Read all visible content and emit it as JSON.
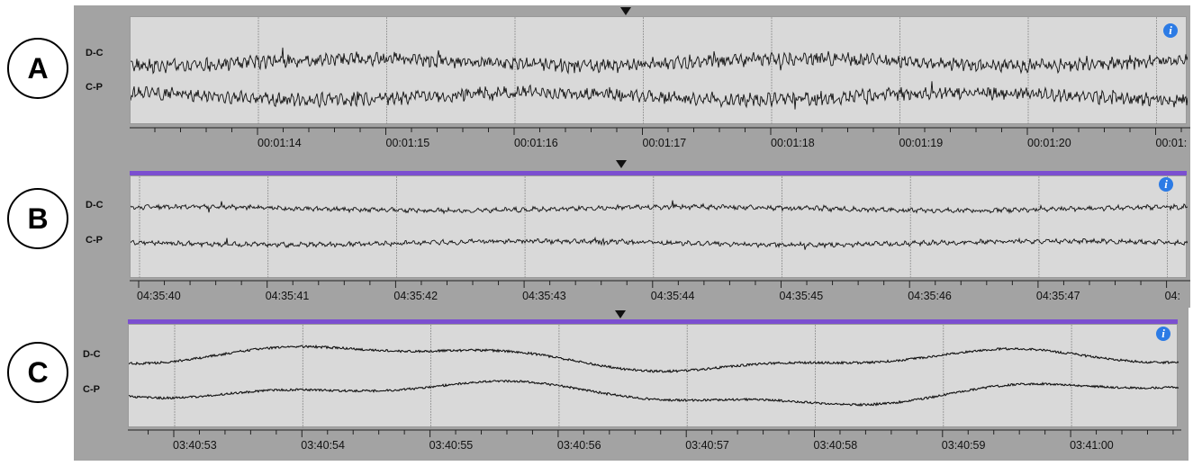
{
  "panels": [
    {
      "id": "A",
      "channels": [
        "D-C",
        "C-P"
      ],
      "times": [
        "00:01:14",
        "00:01:15",
        "00:01:16",
        "00:01:17",
        "00:01:18",
        "00:01:19",
        "00:01:20",
        "00:01:"
      ],
      "amplitude": "high",
      "has_selection_bar": false
    },
    {
      "id": "B",
      "channels": [
        "D-C",
        "C-P"
      ],
      "times": [
        "04:35:40",
        "04:35:41",
        "04:35:42",
        "04:35:43",
        "04:35:44",
        "04:35:45",
        "04:35:46",
        "04:35:47",
        "04:"
      ],
      "amplitude": "low",
      "has_selection_bar": true
    },
    {
      "id": "C",
      "channels": [
        "D-C",
        "C-P"
      ],
      "times": [
        "03:40:53",
        "03:40:54",
        "03:40:55",
        "03:40:56",
        "03:40:57",
        "03:40:58",
        "03:40:59",
        "03:41:00"
      ],
      "amplitude": "slow",
      "has_selection_bar": true
    }
  ],
  "info_icon_label": "i",
  "colors": {
    "panel_bg": "#a3a3a3",
    "plot_bg": "#d9d9d9",
    "selection_bar": "#7b4fd0",
    "info_icon": "#2c7be5",
    "trace": "#111111"
  }
}
